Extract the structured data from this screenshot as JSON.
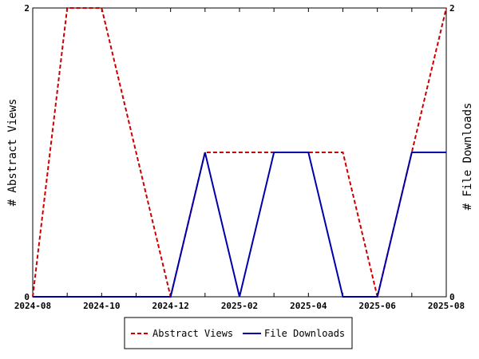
{
  "chart_data": {
    "type": "line",
    "x": [
      "2024-08",
      "2024-09",
      "2024-10",
      "2024-11",
      "2024-12",
      "2025-01",
      "2025-02",
      "2025-03",
      "2025-04",
      "2025-05",
      "2025-06",
      "2025-07",
      "2025-08"
    ],
    "x_tick_labels": [
      "2024-08",
      "2024-10",
      "2024-12",
      "2025-02",
      "2025-04",
      "2025-06",
      "2025-08"
    ],
    "ylabel": "# Abstract Views",
    "y2label": "# File Downloads",
    "ylim": [
      0,
      2
    ],
    "y2lim": [
      0,
      2
    ],
    "y_tick_labels": [
      "0",
      "2"
    ],
    "y2_tick_labels": [
      "0",
      "2"
    ],
    "grid": false,
    "legend_position": "bottom",
    "series": [
      {
        "name": "Abstract Views",
        "axis": "left",
        "color": "#cc0000",
        "dash": "dashed",
        "values": [
          0,
          2,
          2,
          1,
          0,
          1,
          1,
          1,
          1,
          1,
          0,
          1,
          2
        ]
      },
      {
        "name": "File Downloads",
        "axis": "right",
        "color": "#0000aa",
        "dash": "solid",
        "values": [
          0,
          0,
          0,
          0,
          0,
          1,
          0,
          1,
          1,
          0,
          0,
          1,
          1
        ]
      }
    ]
  }
}
